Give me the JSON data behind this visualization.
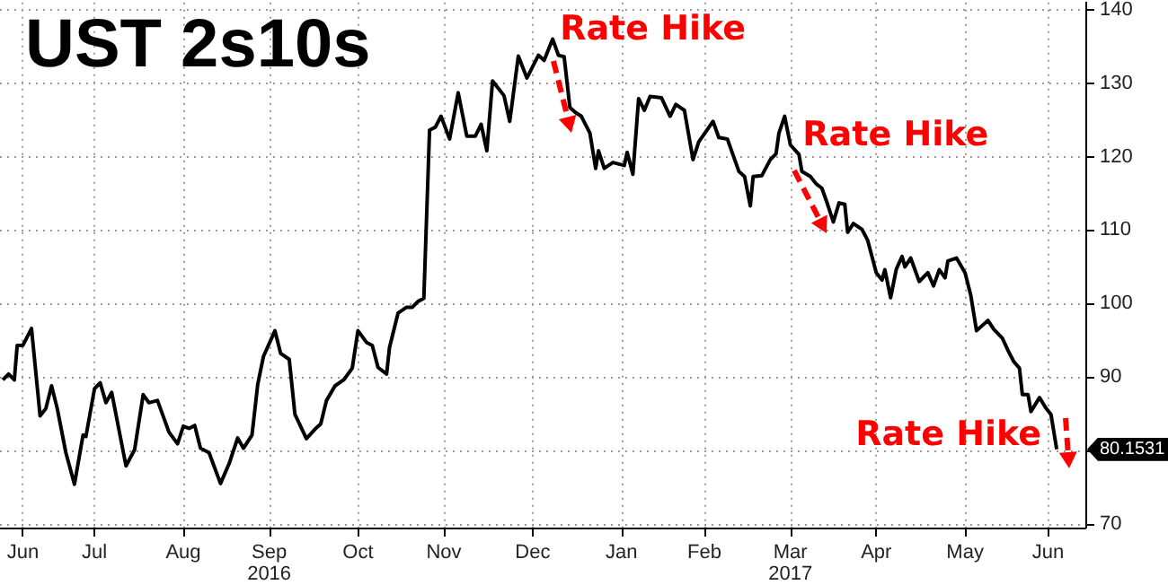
{
  "chart_data": {
    "type": "line",
    "title": "UST 2s10s",
    "x": [
      "2016-06-14",
      "2016-06-16",
      "2016-06-18",
      "2016-06-19",
      "2016-06-21",
      "2016-06-24",
      "2016-06-27",
      "2016-06-29",
      "2016-07-01",
      "2016-07-03",
      "2016-07-06",
      "2016-07-09",
      "2016-07-12",
      "2016-07-13",
      "2016-07-16",
      "2016-07-18",
      "2016-07-20",
      "2016-07-22",
      "2016-07-27",
      "2016-07-30",
      "2016-08-02",
      "2016-08-04",
      "2016-08-07",
      "2016-08-11",
      "2016-08-14",
      "2016-08-16",
      "2016-08-18",
      "2016-08-20",
      "2016-08-22",
      "2016-08-25",
      "2016-08-29",
      "2016-09-01",
      "2016-09-04",
      "2016-09-06",
      "2016-09-09",
      "2016-09-11",
      "2016-09-13",
      "2016-09-17",
      "2016-09-19",
      "2016-09-22",
      "2016-09-24",
      "2016-09-28",
      "2016-10-01",
      "2016-10-03",
      "2016-10-05",
      "2016-10-08",
      "2016-10-11",
      "2016-10-14",
      "2016-10-16",
      "2016-10-19",
      "2016-10-21",
      "2016-10-23",
      "2016-10-26",
      "2016-10-27",
      "2016-10-30",
      "2016-11-02",
      "2016-11-04",
      "2016-11-06",
      "2016-11-08",
      "2016-11-10",
      "2016-11-12",
      "2016-11-14",
      "2016-11-17",
      "2016-11-20",
      "2016-11-23",
      "2016-11-26",
      "2016-11-28",
      "2016-11-30",
      "2016-12-02",
      "2016-12-06",
      "2016-12-08",
      "2016-12-11",
      "2016-12-14",
      "2016-12-18",
      "2016-12-20",
      "2016-12-23",
      "2016-12-25",
      "2016-12-27",
      "2016-12-29",
      "2016-12-31",
      "2017-01-02",
      "2017-01-05",
      "2017-01-07",
      "2017-01-08",
      "2017-01-10",
      "2017-01-13",
      "2017-01-17",
      "2017-01-18",
      "2017-01-20",
      "2017-01-22",
      "2017-01-24",
      "2017-01-26",
      "2017-01-30",
      "2017-02-02",
      "2017-02-04",
      "2017-02-07",
      "2017-02-10",
      "2017-02-12",
      "2017-02-15",
      "2017-02-17",
      "2017-02-19",
      "2017-02-22",
      "2017-02-26",
      "2017-02-28",
      "2017-03-02",
      "2017-03-03",
      "2017-03-06",
      "2017-03-09",
      "2017-03-11",
      "2017-03-12",
      "2017-03-14",
      "2017-03-16",
      "2017-03-19",
      "2017-03-20",
      "2017-03-23",
      "2017-03-25",
      "2017-03-27",
      "2017-03-29",
      "2017-03-31",
      "2017-04-02",
      "2017-04-04",
      "2017-04-05",
      "2017-04-07",
      "2017-04-10",
      "2017-04-12",
      "2017-04-15",
      "2017-04-17",
      "2017-04-18",
      "2017-04-20",
      "2017-04-22",
      "2017-04-24",
      "2017-04-25",
      "2017-04-27",
      "2017-04-30",
      "2017-05-03",
      "2017-05-05",
      "2017-05-07",
      "2017-05-09",
      "2017-05-10",
      "2017-05-13",
      "2017-05-16",
      "2017-05-18",
      "2017-05-20",
      "2017-05-24",
      "2017-05-26",
      "2017-05-29",
      "2017-05-31",
      "2017-06-02",
      "2017-06-04",
      "2017-06-05",
      "2017-06-07",
      "2017-06-08",
      "2017-06-11",
      "2017-06-13",
      "2017-06-15",
      "2017-06-17"
    ],
    "series": [
      {
        "color": "#000000",
        "values": [
          89.6,
          90.4,
          89.6,
          94.3,
          94.3,
          96.6,
          84.7,
          85.7,
          88.8,
          85.7,
          79.7,
          75.4,
          82.1,
          81.9,
          88.4,
          89.2,
          86.5,
          87.9,
          77.9,
          80.1,
          87.6,
          86.5,
          86.8,
          82.5,
          80.9,
          83.3,
          83.0,
          83.4,
          80.3,
          79.7,
          75.5,
          78.2,
          81.7,
          80.3,
          82.1,
          89.0,
          92.8,
          96.3,
          93.2,
          92.4,
          84.9,
          81.6,
          82.9,
          83.6,
          86.8,
          88.8,
          89.6,
          91.2,
          96.3,
          94.7,
          94.3,
          91.3,
          90.4,
          94.0,
          98.7,
          99.5,
          99.5,
          100.3,
          100.7,
          123.6,
          124.0,
          125.5,
          122.4,
          128.7,
          122.8,
          122.8,
          124.4,
          120.8,
          130.3,
          128.3,
          124.8,
          133.7,
          130.7,
          133.8,
          133.1,
          136.0,
          133.8,
          133.6,
          126.7,
          126.0,
          125.5,
          123.2,
          118.4,
          120.8,
          118.4,
          119.2,
          118.8,
          120.6,
          117.6,
          127.9,
          126.3,
          128.2,
          128.0,
          125.5,
          127.1,
          126.3,
          119.6,
          122.0,
          123.7,
          124.8,
          122.6,
          122.4,
          118.0,
          117.3,
          113.3,
          117.3,
          117.4,
          119.6,
          120.4,
          123.2,
          125.5,
          121.6,
          120.3,
          118.0,
          117.3,
          116.3,
          115.7,
          113.5,
          111.1,
          113.7,
          113.5,
          109.7,
          110.9,
          110.1,
          108.6,
          104.2,
          103.2,
          104.6,
          100.8,
          104.7,
          106.4,
          105.0,
          106.2,
          103.0,
          104.2,
          102.4,
          104.6,
          103.5,
          105.8,
          106.2,
          104.2,
          101.1,
          96.3,
          97.7,
          96.5,
          95.3,
          93.6,
          92.1,
          91.2,
          87.6,
          87.6,
          85.3,
          87.2,
          85.9,
          84.9,
          80.1531
        ]
      }
    ],
    "xlim": [
      "2016-06-13",
      "2017-06-27"
    ],
    "xticks": [
      {
        "value": "2016-06-21",
        "label": "Jun"
      },
      {
        "value": "2016-07-16",
        "label": "Jul"
      },
      {
        "value": "2016-08-16",
        "label": "Aug"
      },
      {
        "value": "2016-09-15",
        "label": "Sep\n2016"
      },
      {
        "value": "2016-10-16",
        "label": "Oct"
      },
      {
        "value": "2016-11-15",
        "label": "Nov"
      },
      {
        "value": "2016-12-16",
        "label": "Dec"
      },
      {
        "value": "2017-01-16",
        "label": "Jan"
      },
      {
        "value": "2017-02-14",
        "label": "Feb"
      },
      {
        "value": "2017-03-16",
        "label": "Mar\n2017"
      },
      {
        "value": "2017-04-15",
        "label": "Apr"
      },
      {
        "value": "2017-05-16",
        "label": "May"
      },
      {
        "value": "2017-06-14",
        "label": "Jun"
      }
    ],
    "ylim": [
      69.5,
      141
    ],
    "yticks": [
      70,
      {
        "value": 80,
        "label": null
      },
      90,
      100,
      110,
      120,
      130,
      140
    ],
    "grid": true,
    "annotations": [
      {
        "text": "Rate Hike",
        "x": "2016-12-23",
        "y": 136.0
      },
      {
        "text": "Rate Hike",
        "x": "2017-03-14",
        "y": 125.5
      },
      {
        "text": "Rate Hike",
        "x": "2017-06-17",
        "y": 80.1531
      },
      {
        "text": "80.1531",
        "x": "2017-06-17",
        "y": 80.1531
      }
    ]
  }
}
